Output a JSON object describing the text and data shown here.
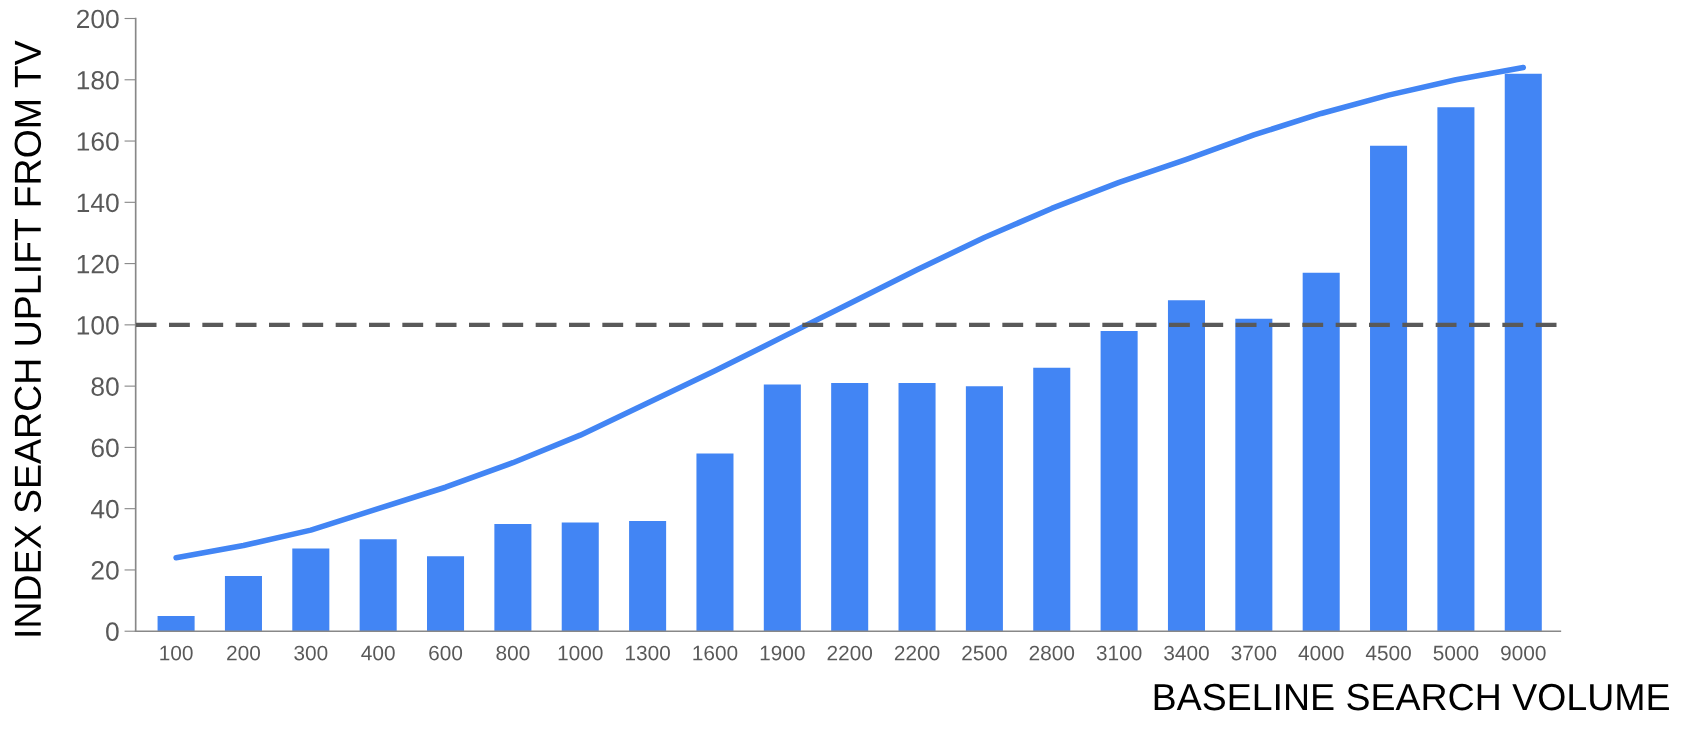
{
  "chart_data": {
    "type": "bar",
    "xlabel": "BASELINE SEARCH VOLUME",
    "ylabel": "INDEX SEARCH UPLIFT FROM TV",
    "categories": [
      "100",
      "200",
      "300",
      "400",
      "600",
      "800",
      "1000",
      "1300",
      "1600",
      "1900",
      "2200",
      "2200",
      "2500",
      "2800",
      "3100",
      "3400",
      "3700",
      "4000",
      "4500",
      "5000",
      "9000"
    ],
    "series": [
      {
        "color": "#4285f4",
        "values": [
          5,
          18,
          27,
          30,
          24.5,
          35,
          35.5,
          36,
          58,
          80.5,
          81,
          81,
          80,
          86,
          98,
          108,
          102,
          117,
          158.5,
          171,
          182
        ]
      },
      {
        "type": "line",
        "color": "#4285f4",
        "values": [
          24,
          28,
          33,
          40,
          47,
          55,
          64,
          74.5,
          85,
          96,
          107,
          118,
          128.5,
          138,
          146.5,
          154,
          162,
          169,
          175,
          180,
          184
        ]
      }
    ],
    "ylim": [
      0,
      200
    ],
    "yticks": [
      0,
      20,
      40,
      60,
      80,
      100,
      120,
      140,
      160,
      180,
      200
    ],
    "ref_lines": [
      {
        "axis": "y",
        "value": 100,
        "color": "#595959",
        "line_style": "dashed"
      }
    ],
    "grid": false,
    "legend": false
  }
}
